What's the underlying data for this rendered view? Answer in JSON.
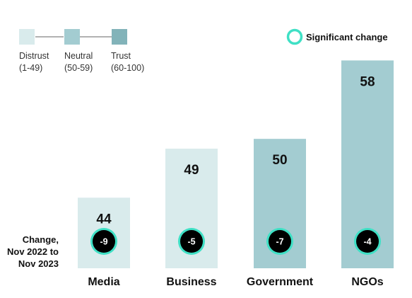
{
  "chart_data": {
    "type": "bar",
    "categories": [
      "Media",
      "Business",
      "Government",
      "NGOs"
    ],
    "values": [
      44,
      49,
      50,
      58
    ],
    "change": [
      "-9",
      "-5",
      "-7",
      "-4"
    ],
    "significant": [
      true,
      true,
      true,
      true
    ],
    "change_label": [
      "Change,",
      "Nov 2022 to",
      "Nov 2023"
    ],
    "legend": [
      {
        "label": "Distrust",
        "range": "(1-49)",
        "color": "#d9ebec"
      },
      {
        "label": "Neutral",
        "range": "(50-59)",
        "color": "#a3ccd1"
      },
      {
        "label": "Trust",
        "range": "(60-100)",
        "color": "#82b3b9"
      }
    ],
    "significant_label": "Significant change",
    "colors": {
      "distrust": "#d9ebec",
      "neutral": "#a3ccd1",
      "significant_ring": "#3fe0c5",
      "badge": "#000000"
    }
  }
}
